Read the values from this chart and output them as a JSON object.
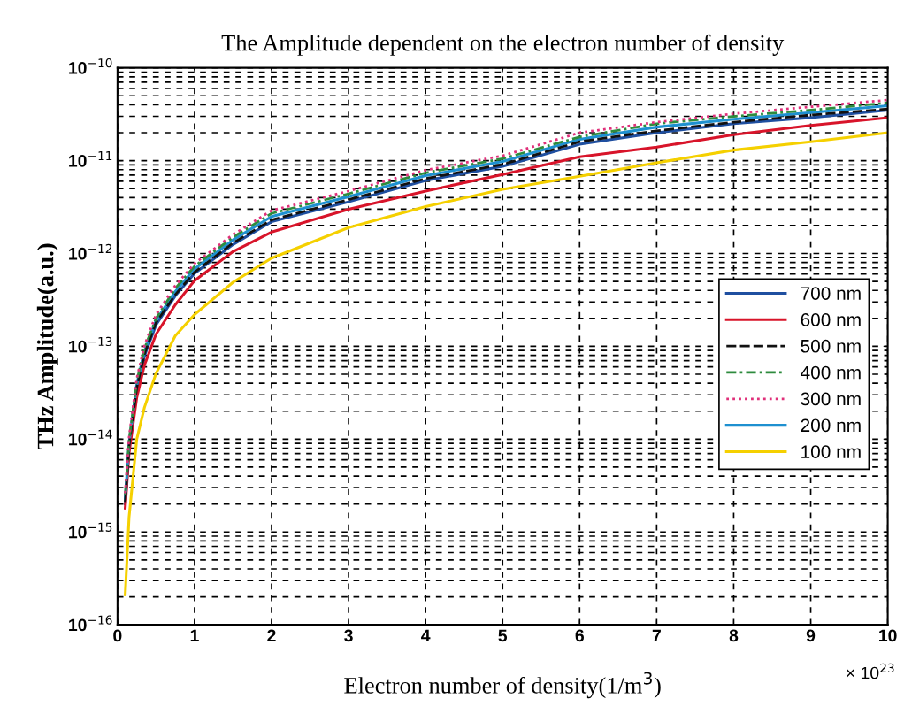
{
  "chart_data": {
    "type": "line",
    "title": "The Amplitude dependent on the electron number of density",
    "xlabel": "Electron number of density(1/m$^{3}$)",
    "ylabel": "THz Amplitude(a.u.)",
    "annotations": [
      "× 10$^{23}$"
    ],
    "x": [
      0.1,
      0.15,
      0.25,
      0.35,
      0.5,
      0.75,
      1,
      1.5,
      2,
      3,
      4,
      5,
      6,
      7,
      8,
      9,
      10
    ],
    "xlim": [
      0,
      10
    ],
    "xticks": [
      0,
      1,
      2,
      3,
      4,
      5,
      6,
      7,
      8,
      9,
      10
    ],
    "ylim": [
      1e-16,
      1e-10
    ],
    "log": "y",
    "yticks": [
      {
        "value": 1e-16,
        "label": "10$^{−16}$"
      },
      {
        "value": 1e-15,
        "label": "10$^{−15}$"
      },
      {
        "value": 1e-14,
        "label": "10$^{−14}$"
      },
      {
        "value": 1e-13,
        "label": "10$^{−13}$"
      },
      {
        "value": 1e-12,
        "label": "10$^{−12}$"
      },
      {
        "value": 1e-11,
        "label": "10$^{−11}$"
      },
      {
        "value": 1e-10,
        "label": "10$^{−10}$"
      }
    ],
    "grid": true,
    "legend": "right",
    "series": [
      {
        "name": "700 nm",
        "color": "#1f4fa0",
        "line_style": "solid",
        "values": [
          2e-15,
          8.1e-15,
          3.5e-14,
          7.9e-14,
          1.7e-13,
          3.5e-13,
          6.1e-13,
          1.25e-12,
          2.2e-12,
          3.6e-12,
          6.1e-12,
          8.7e-12,
          1.5e-11,
          2e-11,
          2.5e-11,
          2.9e-11,
          3.5e-11
        ]
      },
      {
        "name": "600 nm",
        "color": "#d8142a",
        "line_style": "solid",
        "values": [
          1.8e-15,
          7.1e-15,
          2.8e-14,
          6.3e-14,
          1.35e-13,
          2.8e-13,
          5.1e-13,
          1.05e-12,
          1.7e-12,
          3e-12,
          4.7e-12,
          7.1e-12,
          1.1e-11,
          1.4e-11,
          1.9e-11,
          2.4e-11,
          2.9e-11
        ]
      },
      {
        "name": "500 nm",
        "color": "#111111",
        "line_style": "dashed",
        "values": [
          2.1e-15,
          8.5e-15,
          3.6e-14,
          8.3e-14,
          1.8e-13,
          3.6e-13,
          6.3e-13,
          1.3e-12,
          2.3e-12,
          3.8e-12,
          6.4e-12,
          9.1e-12,
          1.6e-11,
          2.1e-11,
          2.6e-11,
          3.1e-11,
          3.6e-11
        ]
      },
      {
        "name": "400 nm",
        "color": "#2e8b3e",
        "line_style": "dashdot",
        "values": [
          2.5e-15,
          9.7e-15,
          4.2e-14,
          9.5e-14,
          2e-13,
          4.2e-13,
          7.3e-13,
          1.5e-12,
          2.7e-12,
          4.4e-12,
          7.4e-12,
          1.05e-11,
          1.8e-11,
          2.5e-11,
          3e-11,
          3.5e-11,
          4.2e-11
        ]
      },
      {
        "name": "300 nm",
        "color": "#e0307a",
        "line_style": "dotted",
        "values": [
          2.6e-15,
          1.05e-14,
          4.5e-14,
          1.02e-13,
          2.2e-13,
          4.5e-13,
          7.8e-13,
          1.6e-12,
          2.9e-12,
          4.7e-12,
          7.9e-12,
          1.13e-11,
          2e-11,
          2.6e-11,
          3.2e-11,
          3.8e-11,
          4.5e-11
        ]
      },
      {
        "name": "200 nm",
        "color": "#1e90d0",
        "line_style": "solid",
        "values": [
          2.3e-15,
          9.1e-15,
          3.9e-14,
          8.9e-14,
          1.9e-13,
          3.9e-13,
          6.8e-13,
          1.4e-12,
          2.5e-12,
          4.1e-12,
          6.9e-12,
          9.8e-12,
          1.7e-11,
          2.3e-11,
          2.8e-11,
          3.3e-11,
          3.9e-11
        ]
      },
      {
        "name": "100 nm",
        "color": "#f5d000",
        "line_style": "solid",
        "values": [
          2.1e-16,
          1.45e-15,
          1e-14,
          2.2e-14,
          5.1e-14,
          1.3e-13,
          2.2e-13,
          4.9e-13,
          8.9e-13,
          1.9e-12,
          3.2e-12,
          4.9e-12,
          6.8e-12,
          9.5e-12,
          1.3e-11,
          1.6e-11,
          2e-11
        ]
      }
    ]
  }
}
